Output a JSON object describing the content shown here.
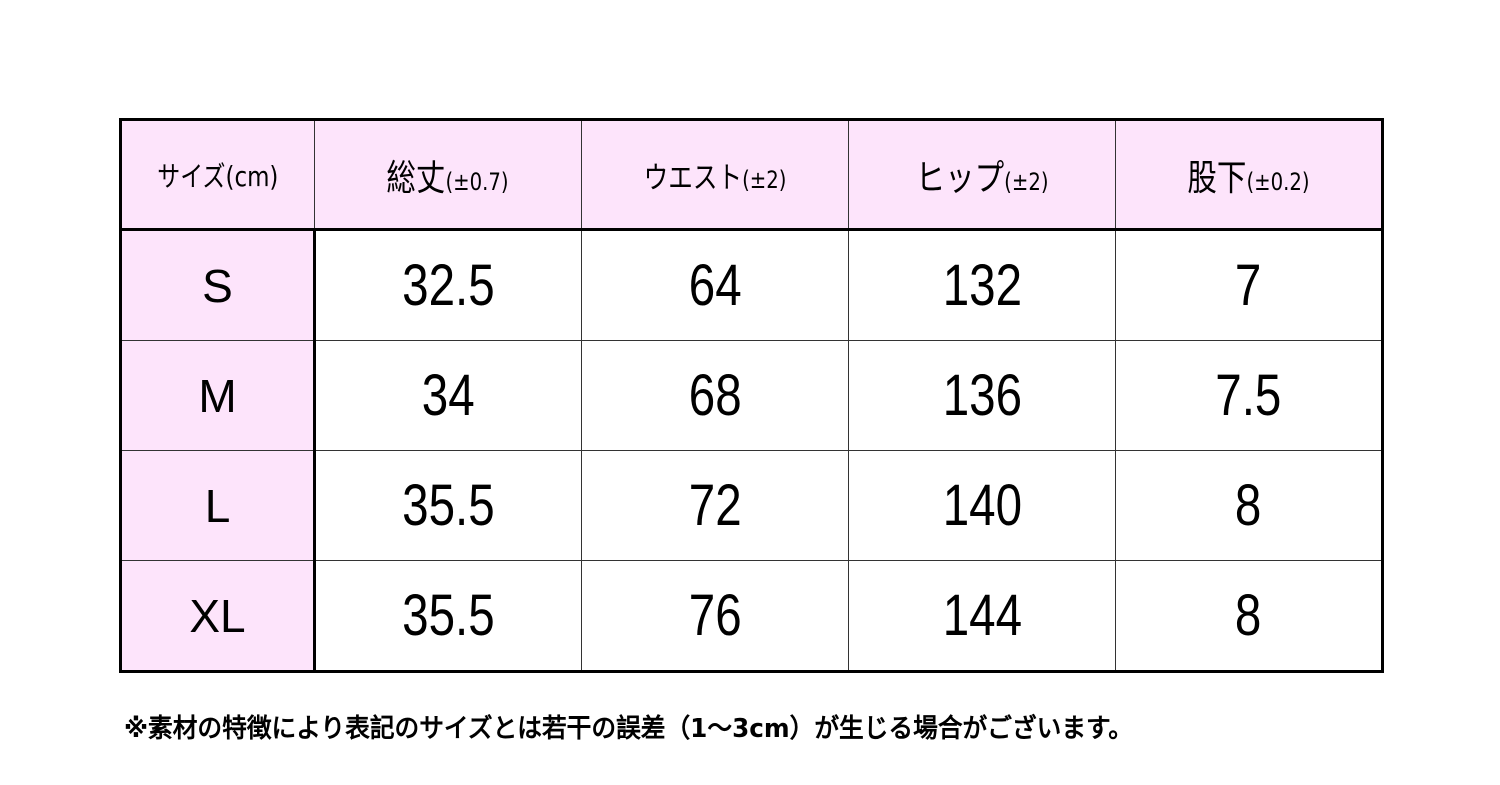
{
  "table": {
    "headers": [
      {
        "main": "サイズ(cm)",
        "sub": ""
      },
      {
        "main": "総丈",
        "sub": "(±0.7)"
      },
      {
        "main": "ウエスト",
        "sub": "(±2)"
      },
      {
        "main": "ヒップ",
        "sub": "(±2)"
      },
      {
        "main": "股下",
        "sub": "(±0.2)"
      }
    ],
    "rows": [
      [
        "S",
        "32.5",
        "64",
        "132",
        "7"
      ],
      [
        "M",
        "34",
        "68",
        "136",
        "7.5"
      ],
      [
        "L",
        "35.5",
        "72",
        "140",
        "8"
      ],
      [
        "XL",
        "35.5",
        "76",
        "144",
        "8"
      ]
    ],
    "header_color": "#fde4fb"
  },
  "note": "※素材の特徴により表記のサイズとは若干の誤差（1～3cm）が生じる場合がございます。"
}
